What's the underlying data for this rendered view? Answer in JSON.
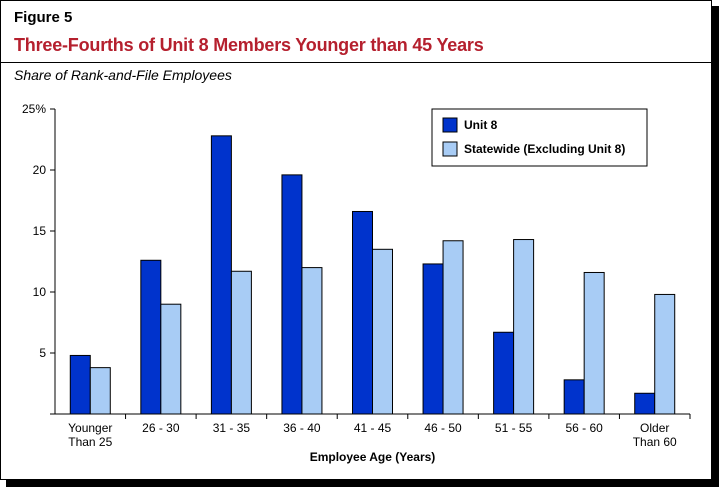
{
  "figure_label": "Figure 5",
  "title": "Three-Fourths of Unit 8 Members Younger than 45 Years",
  "subtitle": "Share of Rank-and-File Employees",
  "colors": {
    "unit8": "#0033cc",
    "statewide": "#a8ccf5",
    "title": "#b5202e"
  },
  "chart_data": {
    "type": "bar",
    "categories": [
      [
        "Younger",
        "Than 25"
      ],
      [
        "26 - 30"
      ],
      [
        "31 - 35"
      ],
      [
        "36 - 40"
      ],
      [
        "41 - 45"
      ],
      [
        "46 - 50"
      ],
      [
        "51 - 55"
      ],
      [
        "56 - 60"
      ],
      [
        "Older",
        "Than 60"
      ]
    ],
    "series": [
      {
        "name": "Unit 8",
        "values": [
          4.8,
          12.6,
          22.8,
          19.6,
          16.6,
          12.3,
          6.7,
          2.8,
          1.7
        ]
      },
      {
        "name": "Statewide (Excluding Unit 8)",
        "values": [
          3.8,
          9.0,
          11.7,
          12.0,
          13.5,
          14.2,
          14.3,
          11.6,
          9.8
        ]
      }
    ],
    "y_ticks": [
      "5",
      "10",
      "15",
      "20",
      "25%"
    ],
    "y_tick_values": [
      5,
      10,
      15,
      20,
      25
    ],
    "ylim": [
      0,
      25
    ],
    "xlabel": "Employee Age (Years)",
    "legend_position": "top-right",
    "grid": false
  }
}
